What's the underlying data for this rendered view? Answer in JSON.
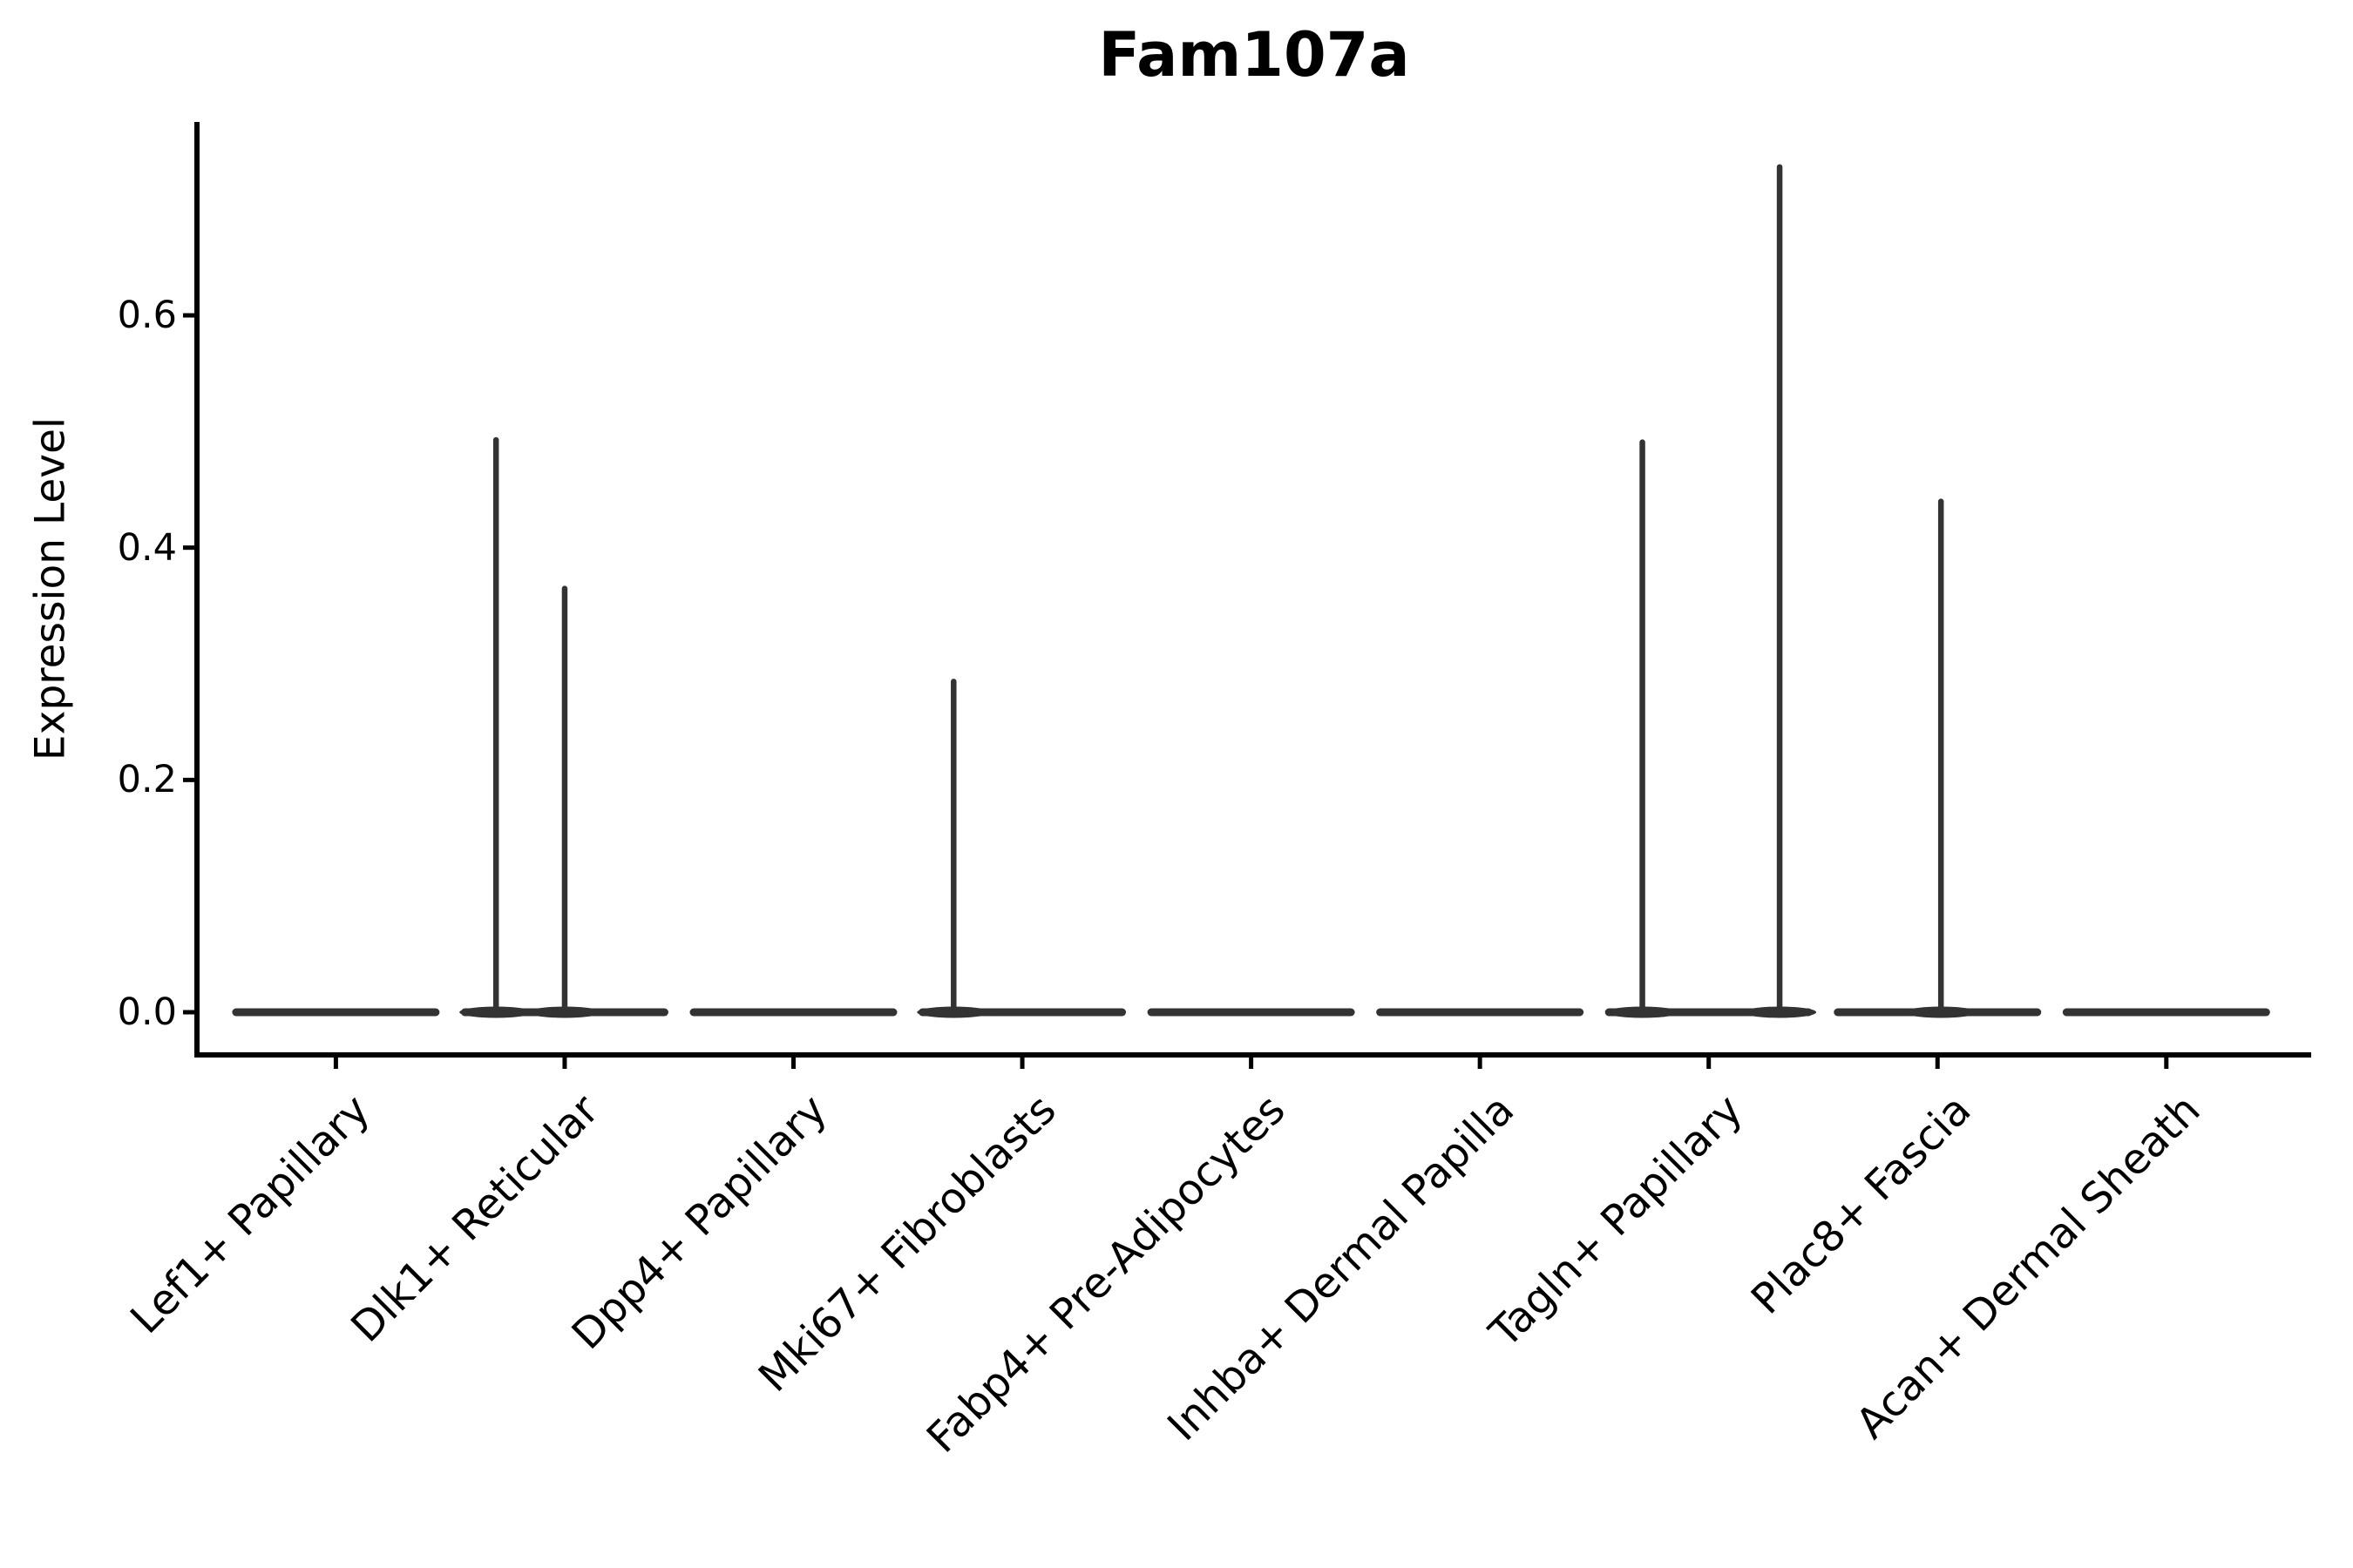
{
  "chart_data": {
    "type": "violin",
    "title": "Fam107a",
    "ylabel": "Expression Level",
    "xlabel": "",
    "categories": [
      "Lef1+ Papillary",
      "Dlk1+ Reticular",
      "Dpp4+ Papillary",
      "Mki67+ Fibroblasts",
      "Fabp4+ Pre-Adipocytes",
      "Inhba+ Dermal Papilla",
      "Tagln+ Papillary",
      "Plac8+ Fascia",
      "Acan+ Dermal Sheath"
    ],
    "yticks": [
      0.0,
      0.2,
      0.4,
      0.6
    ],
    "ytick_labels": [
      "0.0",
      "0.2",
      "0.4",
      "0.6"
    ],
    "ylim": [
      -0.035,
      0.77
    ],
    "grid": false,
    "legend_position": "none",
    "x_tick_label_rotation_deg": 45,
    "colors": {
      "violin": "#333333",
      "axis": "#000000",
      "background": "#ffffff",
      "text": "#000000"
    },
    "series": [
      {
        "name": "Lef1+ Papillary",
        "baseline_value": 0.0,
        "spikes": []
      },
      {
        "name": "Dlk1+ Reticular",
        "baseline_value": 0.0,
        "spikes": [
          {
            "value": 0.495,
            "offset_frac": -0.3
          },
          {
            "value": 0.367,
            "offset_frac": 0.0
          }
        ]
      },
      {
        "name": "Dpp4+ Papillary",
        "baseline_value": 0.0,
        "spikes": []
      },
      {
        "name": "Mki67+ Fibroblasts",
        "baseline_value": 0.0,
        "spikes": [
          {
            "value": 0.287,
            "offset_frac": -0.3
          }
        ]
      },
      {
        "name": "Fabp4+ Pre-Adipocytes",
        "baseline_value": 0.0,
        "spikes": []
      },
      {
        "name": "Inhba+ Dermal Papilla",
        "baseline_value": 0.0,
        "spikes": []
      },
      {
        "name": "Tagln+ Papillary",
        "baseline_value": 0.0,
        "spikes": [
          {
            "value": 0.493,
            "offset_frac": -0.29
          },
          {
            "value": 0.73,
            "offset_frac": 0.31
          }
        ]
      },
      {
        "name": "Plac8+ Fascia",
        "baseline_value": 0.0,
        "spikes": [
          {
            "value": 0.442,
            "offset_frac": 0.015
          }
        ]
      },
      {
        "name": "Acan+ Dermal Sheath",
        "baseline_value": 0.0,
        "spikes": []
      }
    ]
  }
}
